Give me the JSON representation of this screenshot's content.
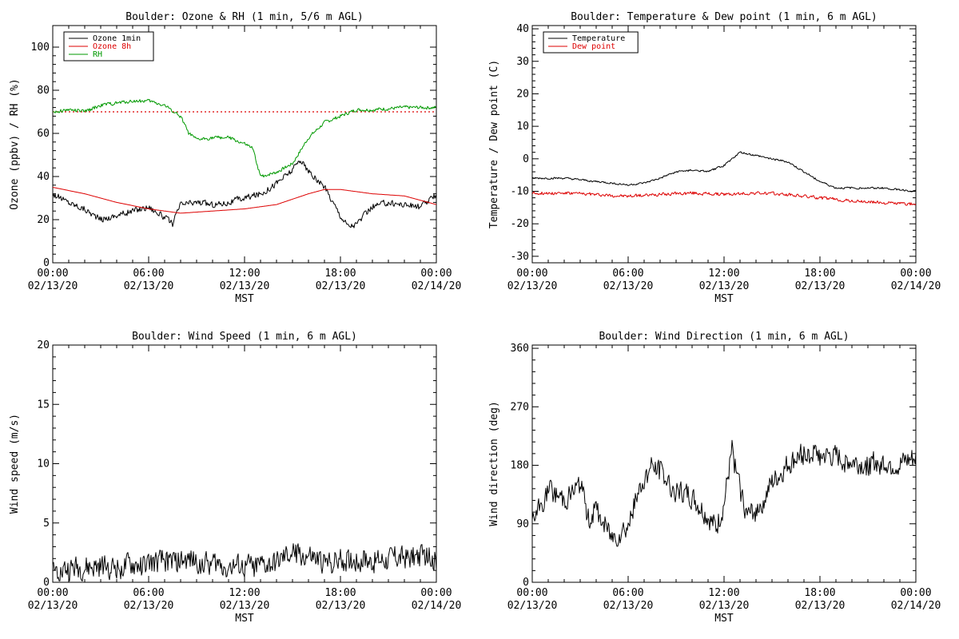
{
  "colors": {
    "background": "#ffffff",
    "axis": "#000000",
    "black": "#000000",
    "red": "#dd0000",
    "green": "#009900"
  },
  "chart_data": [
    {
      "type": "line",
      "title": "Boulder: Ozone & RH (1 min, 5/6 m AGL)",
      "xlabel": "MST",
      "ylabel": "Ozone (ppbv) / RH (%)",
      "xlim": [
        0,
        24
      ],
      "ylim": [
        0,
        110
      ],
      "xticks": [
        0,
        6,
        12,
        18,
        24
      ],
      "xtick_labels": [
        [
          "00:00",
          "02/13/20"
        ],
        [
          "06:00",
          "02/13/20"
        ],
        [
          "12:00",
          "02/13/20"
        ],
        [
          "18:00",
          "02/13/20"
        ],
        [
          "00:00",
          "02/14/20"
        ]
      ],
      "yticks": [
        0,
        20,
        40,
        60,
        80,
        100
      ],
      "legend_position": "top-left",
      "reference_line": {
        "y": 70,
        "color": "#dd0000",
        "style": "dotted"
      },
      "series": [
        {
          "name": "Ozone 1min",
          "color": "#000000",
          "noise": 1.5,
          "x": [
            0,
            1,
            2,
            3,
            4,
            5,
            6,
            7,
            7.5,
            8,
            9,
            10,
            11,
            12,
            13,
            14,
            15,
            15.5,
            16,
            17,
            18,
            18.5,
            19,
            20,
            21,
            22,
            23,
            24
          ],
          "y": [
            32,
            28,
            25,
            20,
            22,
            24,
            26,
            21,
            18,
            27,
            28,
            27,
            28,
            30,
            32,
            37,
            43,
            48,
            42,
            35,
            22,
            17,
            18,
            26,
            28,
            27,
            26,
            31
          ]
        },
        {
          "name": "Ozone 8h",
          "color": "#dd0000",
          "noise": 0,
          "x": [
            0,
            2,
            4,
            6,
            8,
            10,
            12,
            14,
            16,
            17,
            18,
            20,
            22,
            24
          ],
          "y": [
            35,
            32,
            28,
            25,
            23,
            24,
            25,
            27,
            32,
            34,
            34,
            32,
            31,
            27
          ]
        },
        {
          "name": "RH",
          "color": "#009900",
          "noise": 0.8,
          "x": [
            0,
            1,
            2,
            3,
            4,
            5,
            6,
            7,
            8,
            8.5,
            9,
            10,
            11,
            12,
            12.5,
            13,
            14,
            15,
            16,
            17,
            18,
            19,
            20,
            22,
            24
          ],
          "y": [
            70,
            71,
            70,
            73,
            74,
            75,
            75,
            73,
            68,
            60,
            57,
            58,
            58,
            55,
            53,
            40,
            42,
            46,
            58,
            65,
            68,
            71,
            71,
            72,
            72
          ]
        }
      ]
    },
    {
      "type": "line",
      "title": "Boulder: Temperature & Dew point (1 min, 6 m AGL)",
      "xlabel": "MST",
      "ylabel": "Temperature / Dew point (C)",
      "xlim": [
        0,
        24
      ],
      "ylim": [
        -32,
        41
      ],
      "xticks": [
        0,
        6,
        12,
        18,
        24
      ],
      "xtick_labels": [
        [
          "00:00",
          "02/13/20"
        ],
        [
          "06:00",
          "02/13/20"
        ],
        [
          "12:00",
          "02/13/20"
        ],
        [
          "18:00",
          "02/13/20"
        ],
        [
          "00:00",
          "02/14/20"
        ]
      ],
      "yticks": [
        -30,
        -20,
        -10,
        0,
        10,
        20,
        30,
        40
      ],
      "legend_position": "top-left",
      "series": [
        {
          "name": "Temperature",
          "color": "#000000",
          "noise": 0.3,
          "x": [
            0,
            1,
            2,
            3,
            4,
            5,
            6,
            7,
            8,
            9,
            10,
            11,
            12,
            12.5,
            13,
            14,
            15,
            16,
            17,
            18,
            19,
            20,
            21,
            22,
            23,
            24
          ],
          "y": [
            -6,
            -6,
            -6,
            -6.5,
            -7,
            -7.5,
            -8,
            -7.5,
            -6,
            -4,
            -3.5,
            -4,
            -2,
            0,
            2,
            1,
            0,
            -1,
            -4,
            -7,
            -9,
            -9,
            -9,
            -9,
            -9.5,
            -10
          ]
        },
        {
          "name": "Dew point",
          "color": "#dd0000",
          "noise": 0.5,
          "x": [
            0,
            2,
            4,
            6,
            8,
            10,
            12,
            14,
            16,
            18,
            20,
            22,
            24
          ],
          "y": [
            -10.5,
            -10.5,
            -11,
            -11.5,
            -11,
            -10.5,
            -11,
            -10.5,
            -11,
            -12,
            -13,
            -13.5,
            -14
          ]
        }
      ]
    },
    {
      "type": "line",
      "title": "Boulder: Wind Speed (1 min, 6 m AGL)",
      "xlabel": "MST",
      "ylabel": "Wind speed (m/s)",
      "xlim": [
        0,
        24
      ],
      "ylim": [
        0,
        20
      ],
      "xticks": [
        0,
        6,
        12,
        18,
        24
      ],
      "xtick_labels": [
        [
          "00:00",
          "02/13/20"
        ],
        [
          "06:00",
          "02/13/20"
        ],
        [
          "12:00",
          "02/13/20"
        ],
        [
          "18:00",
          "02/13/20"
        ],
        [
          "00:00",
          "02/14/20"
        ]
      ],
      "yticks": [
        0,
        5,
        10,
        15,
        20
      ],
      "series": [
        {
          "name": "",
          "color": "#000000",
          "noise": 1.0,
          "x": [
            0,
            2,
            4,
            6,
            8,
            10,
            12,
            14,
            15,
            16,
            17,
            18,
            20,
            22,
            24
          ],
          "y": [
            1.0,
            1.2,
            1.3,
            1.5,
            1.8,
            1.6,
            1.2,
            1.5,
            2.5,
            2.2,
            1.5,
            1.8,
            1.9,
            2.2,
            2.0
          ]
        }
      ]
    },
    {
      "type": "line",
      "title": "Boulder: Wind Direction (1 min, 6 m AGL)",
      "xlabel": "MST",
      "ylabel": "Wind direction (deg)",
      "xlim": [
        0,
        24
      ],
      "ylim": [
        0,
        365
      ],
      "xticks": [
        0,
        6,
        12,
        18,
        24
      ],
      "xtick_labels": [
        [
          "00:00",
          "02/13/20"
        ],
        [
          "06:00",
          "02/13/20"
        ],
        [
          "12:00",
          "02/13/20"
        ],
        [
          "18:00",
          "02/13/20"
        ],
        [
          "00:00",
          "02/14/20"
        ]
      ],
      "yticks": [
        0,
        90,
        180,
        270,
        360
      ],
      "series": [
        {
          "name": "",
          "color": "#000000",
          "noise": 18,
          "x": [
            0,
            1,
            2,
            3,
            3.5,
            4,
            5,
            6,
            7,
            7.5,
            8,
            9,
            10,
            11,
            11.5,
            12,
            12.5,
            13,
            13.5,
            14,
            15,
            16,
            17,
            18,
            19,
            20,
            21,
            22,
            23,
            24
          ],
          "y": [
            90,
            140,
            130,
            150,
            100,
            110,
            70,
            90,
            160,
            180,
            170,
            140,
            130,
            100,
            80,
            120,
            200,
            140,
            100,
            110,
            150,
            180,
            200,
            195,
            190,
            185,
            180,
            185,
            180,
            190
          ]
        }
      ]
    }
  ]
}
